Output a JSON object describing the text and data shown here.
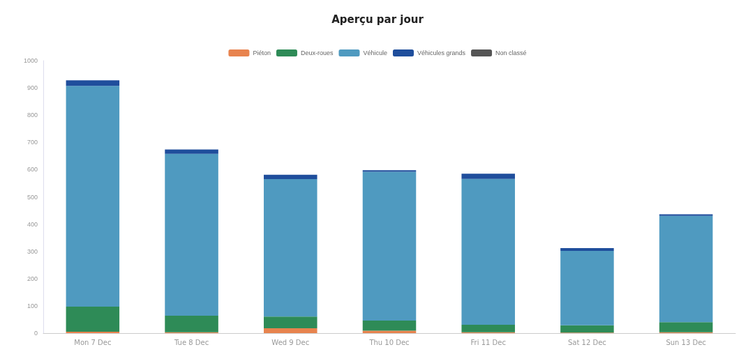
{
  "chart_data": {
    "type": "bar",
    "title": "Aperçu par jour",
    "stacked": true,
    "categories": [
      "Mon 7 Dec",
      "Tue 8 Dec",
      "Wed 9 Dec",
      "Thu 10 Dec",
      "Fri 11 Dec",
      "Sat 12 Dec",
      "Sun 13 Dec"
    ],
    "series": [
      {
        "name": "Piéton",
        "color": "#e8834e",
        "values": [
          5,
          3,
          18,
          9,
          3,
          2,
          3
        ]
      },
      {
        "name": "Deux-roues",
        "color": "#2e8b57",
        "values": [
          92,
          61,
          43,
          37,
          28,
          27,
          37
        ]
      },
      {
        "name": "Véhicule",
        "color": "#4f9ac0",
        "values": [
          810,
          594,
          504,
          546,
          535,
          273,
          390
        ]
      },
      {
        "name": "Véhicules grands",
        "color": "#1f4e9c",
        "values": [
          21,
          16,
          16,
          6,
          19,
          10,
          6
        ]
      },
      {
        "name": "Non classé",
        "color": "#555555",
        "values": [
          0,
          0,
          0,
          0,
          0,
          0,
          0
        ]
      }
    ],
    "ylim": [
      0,
      1000
    ],
    "yticks": [
      0,
      100,
      200,
      300,
      400,
      500,
      600,
      700,
      800,
      900,
      1000
    ],
    "grid": false,
    "legend": "top"
  }
}
